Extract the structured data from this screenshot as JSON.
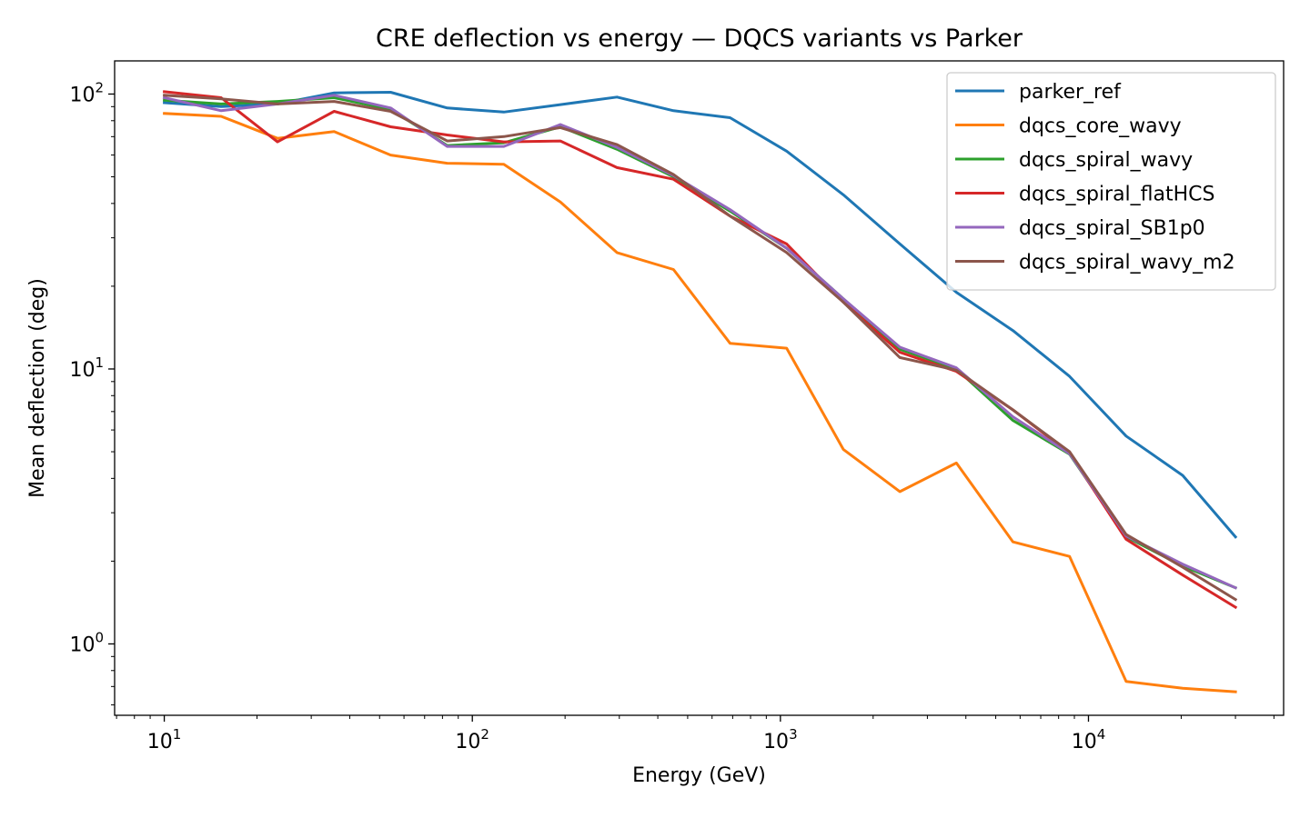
{
  "chart_data": {
    "type": "line",
    "title": "CRE deflection vs energy — DQCS variants vs Parker",
    "xlabel": "Energy (GeV)",
    "ylabel": "Mean deflection (deg)",
    "xscale": "log",
    "yscale": "log",
    "xlim": [
      6.9,
      43000
    ],
    "ylim": [
      0.55,
      132
    ],
    "xticks": [
      {
        "value": 10,
        "base": "10",
        "exp": "1"
      },
      {
        "value": 100,
        "base": "10",
        "exp": "2"
      },
      {
        "value": 1000,
        "base": "10",
        "exp": "3"
      },
      {
        "value": 10000,
        "base": "10",
        "exp": "4"
      }
    ],
    "yticks": [
      {
        "value": 1,
        "base": "10",
        "exp": "0"
      },
      {
        "value": 10,
        "base": "10",
        "exp": "1"
      },
      {
        "value": 100,
        "base": "10",
        "exp": "2"
      }
    ],
    "legend_position": "top-right",
    "grid": false,
    "x": [
      10,
      15.3,
      23.3,
      35.6,
      54.3,
      82.9,
      126.5,
      193.1,
      294.7,
      449.8,
      686.6,
      1048,
      1600,
      2442,
      3727,
      5689,
      8684,
      13255,
      20233,
      30000
    ],
    "series": [
      {
        "name": "parker_ref",
        "color": "#1f77b4",
        "values": [
          93,
          90,
          92,
          101,
          101.5,
          89,
          86,
          91.5,
          97.5,
          87,
          82,
          62,
          43,
          28.5,
          19,
          13.8,
          9.4,
          5.7,
          4.1,
          2.45
        ]
      },
      {
        "name": "dqcs_core_wavy",
        "color": "#ff7f0e",
        "values": [
          85,
          83,
          69,
          73,
          60,
          56,
          55.5,
          40.5,
          26.5,
          23,
          12.4,
          11.9,
          5.1,
          3.58,
          4.55,
          2.35,
          2.08,
          0.73,
          0.69,
          0.67
        ]
      },
      {
        "name": "dqcs_spiral_wavy",
        "color": "#2ca02c",
        "values": [
          95,
          92,
          94,
          97,
          88,
          65,
          66.5,
          76,
          63,
          50,
          37.5,
          27.5,
          18,
          11.8,
          10,
          6.5,
          4.9,
          2.45,
          1.92,
          1.6
        ]
      },
      {
        "name": "dqcs_spiral_flatHCS",
        "color": "#d62728",
        "values": [
          102,
          97,
          67,
          86.5,
          76,
          71,
          67,
          67.5,
          54,
          49,
          36,
          28.5,
          17.5,
          11.5,
          9.8,
          7.1,
          4.95,
          2.4,
          1.78,
          1.36
        ]
      },
      {
        "name": "dqcs_spiral_SB1p0",
        "color": "#9467bd",
        "values": [
          97,
          87,
          92,
          99,
          89,
          64.5,
          64.5,
          77.5,
          64,
          50.5,
          38,
          27.5,
          18,
          12,
          10.1,
          6.7,
          4.92,
          2.47,
          1.95,
          1.6
        ]
      },
      {
        "name": "dqcs_spiral_wavy_m2",
        "color": "#8c564b",
        "values": [
          99,
          96,
          92,
          94,
          86.5,
          67.5,
          70,
          75.5,
          65.5,
          51,
          36,
          26.5,
          17.5,
          11,
          9.9,
          7.1,
          5,
          2.5,
          1.9,
          1.45
        ]
      }
    ]
  }
}
